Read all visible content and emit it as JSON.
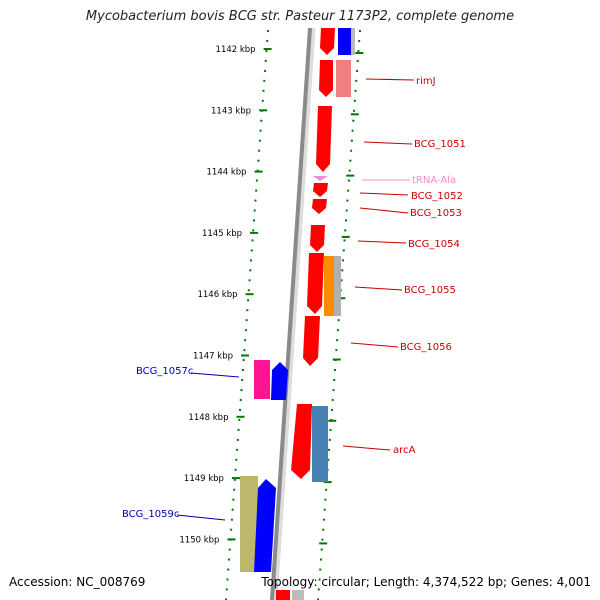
{
  "title": "Mycobacterium bovis BCG str. Pasteur 1173P2, complete genome",
  "footer": {
    "accession": "Accession: NC_008769",
    "summary": "Topology: circular; Length: 4,374,522 bp; Genes: 4,001"
  },
  "colors": {
    "gene_red": "#ff0000",
    "gene_blue": "#0000ff",
    "gene_pink": "#ff1493",
    "gene_orange": "#ff8c00",
    "gene_steelblue": "#4682b4",
    "gene_khaki": "#bdb76b",
    "gene_salmon": "#f08080",
    "gene_gray": "#b0b0b0",
    "trna_pink": "#ff88cc",
    "label_red": "#cc0000",
    "label_blue": "#0000aa",
    "ruler_green": "#007700",
    "backbone_gray": "#888888"
  },
  "ticks": [
    {
      "label": "1142 kbp",
      "kbp": 1142
    },
    {
      "label": "1143 kbp",
      "kbp": 1143
    },
    {
      "label": "1144 kbp",
      "kbp": 1144
    },
    {
      "label": "1145 kbp",
      "kbp": 1145
    },
    {
      "label": "1146 kbp",
      "kbp": 1146
    },
    {
      "label": "1147 kbp",
      "kbp": 1147
    },
    {
      "label": "1148 kbp",
      "kbp": 1148
    },
    {
      "label": "1149 kbp",
      "kbp": 1149
    },
    {
      "label": "1150 kbp",
      "kbp": 1150
    }
  ],
  "labels": {
    "rimJ": "rimJ",
    "BCG_1051": "BCG_1051",
    "tRNA_Ala": "tRNA-Ala",
    "BCG_1052": "BCG_1052",
    "BCG_1053": "BCG_1053",
    "BCG_1054": "BCG_1054",
    "BCG_1055": "BCG_1055",
    "BCG_1056": "BCG_1056",
    "BCG_1057c": "BCG_1057c",
    "arcA": "arcA",
    "BCG_1059c": "BCG_1059c"
  }
}
